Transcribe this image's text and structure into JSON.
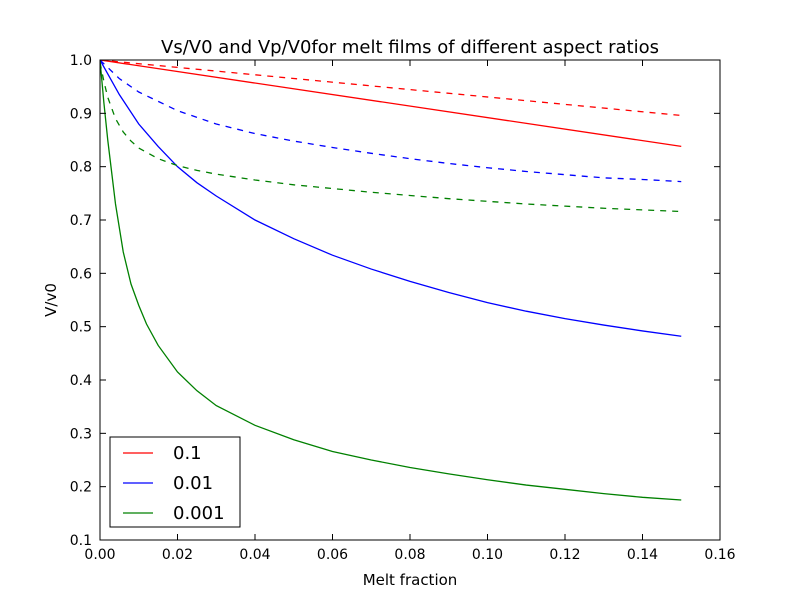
{
  "chart_data": {
    "type": "line",
    "title": "Vs/V0 and Vp/V0for melt films of different aspect ratios",
    "xlabel": "Melt fraction",
    "ylabel": "V/v0",
    "xlim": [
      0.0,
      0.16
    ],
    "ylim": [
      0.1,
      1.0
    ],
    "x_ticks": [
      0.0,
      0.02,
      0.04,
      0.06,
      0.08,
      0.1,
      0.12,
      0.14,
      0.16
    ],
    "x_tick_labels": [
      "0.00",
      "0.02",
      "0.04",
      "0.06",
      "0.08",
      "0.10",
      "0.12",
      "0.14",
      "0.16"
    ],
    "y_ticks": [
      0.1,
      0.2,
      0.3,
      0.4,
      0.5,
      0.6,
      0.7,
      0.8,
      0.9,
      1.0
    ],
    "y_tick_labels": [
      "0.1",
      "0.2",
      "0.3",
      "0.4",
      "0.5",
      "0.6",
      "0.7",
      "0.8",
      "0.9",
      "1.0"
    ],
    "grid": false,
    "legend_position": "lower-left",
    "series": [
      {
        "name": "0.1",
        "color": "#ff0000",
        "style": "solid",
        "x": [
          0,
          0.15
        ],
        "y": [
          1.0,
          0.838
        ]
      },
      {
        "color": "#ff0000",
        "style": "dashed",
        "x": [
          0,
          0.15
        ],
        "y": [
          1.0,
          0.896
        ]
      },
      {
        "name": "0.01",
        "color": "#0000ff",
        "style": "solid",
        "x": [
          0,
          0.005,
          0.01,
          0.015,
          0.02,
          0.025,
          0.03,
          0.04,
          0.05,
          0.06,
          0.07,
          0.08,
          0.09,
          0.1,
          0.11,
          0.12,
          0.13,
          0.14,
          0.15
        ],
        "y": [
          1.0,
          0.935,
          0.88,
          0.838,
          0.8,
          0.77,
          0.745,
          0.7,
          0.665,
          0.634,
          0.608,
          0.585,
          0.564,
          0.545,
          0.529,
          0.515,
          0.503,
          0.492,
          0.482
        ]
      },
      {
        "color": "#0000ff",
        "style": "dashed",
        "x": [
          0,
          0.005,
          0.01,
          0.02,
          0.03,
          0.04,
          0.05,
          0.06,
          0.07,
          0.08,
          0.09,
          0.1,
          0.11,
          0.12,
          0.13,
          0.14,
          0.15
        ],
        "y": [
          1.0,
          0.965,
          0.94,
          0.905,
          0.88,
          0.862,
          0.848,
          0.836,
          0.825,
          0.815,
          0.806,
          0.798,
          0.791,
          0.785,
          0.779,
          0.776,
          0.772
        ]
      },
      {
        "name": "0.001",
        "color": "#008000",
        "style": "solid",
        "x": [
          0,
          0.001,
          0.002,
          0.004,
          0.006,
          0.008,
          0.01,
          0.012,
          0.015,
          0.02,
          0.025,
          0.03,
          0.04,
          0.05,
          0.06,
          0.07,
          0.08,
          0.09,
          0.1,
          0.11,
          0.12,
          0.13,
          0.14,
          0.15
        ],
        "y": [
          1.0,
          0.92,
          0.85,
          0.73,
          0.64,
          0.58,
          0.54,
          0.505,
          0.465,
          0.415,
          0.38,
          0.352,
          0.315,
          0.288,
          0.266,
          0.25,
          0.236,
          0.224,
          0.213,
          0.203,
          0.195,
          0.187,
          0.18,
          0.175
        ]
      },
      {
        "color": "#008000",
        "style": "dashed",
        "x": [
          0,
          0.001,
          0.002,
          0.004,
          0.006,
          0.008,
          0.01,
          0.015,
          0.02,
          0.025,
          0.03,
          0.04,
          0.05,
          0.06,
          0.07,
          0.08,
          0.09,
          0.1,
          0.11,
          0.12,
          0.13,
          0.14,
          0.15
        ],
        "y": [
          0.995,
          0.96,
          0.93,
          0.89,
          0.865,
          0.848,
          0.835,
          0.815,
          0.802,
          0.793,
          0.786,
          0.775,
          0.766,
          0.759,
          0.752,
          0.746,
          0.74,
          0.735,
          0.73,
          0.726,
          0.722,
          0.719,
          0.716
        ]
      }
    ]
  }
}
